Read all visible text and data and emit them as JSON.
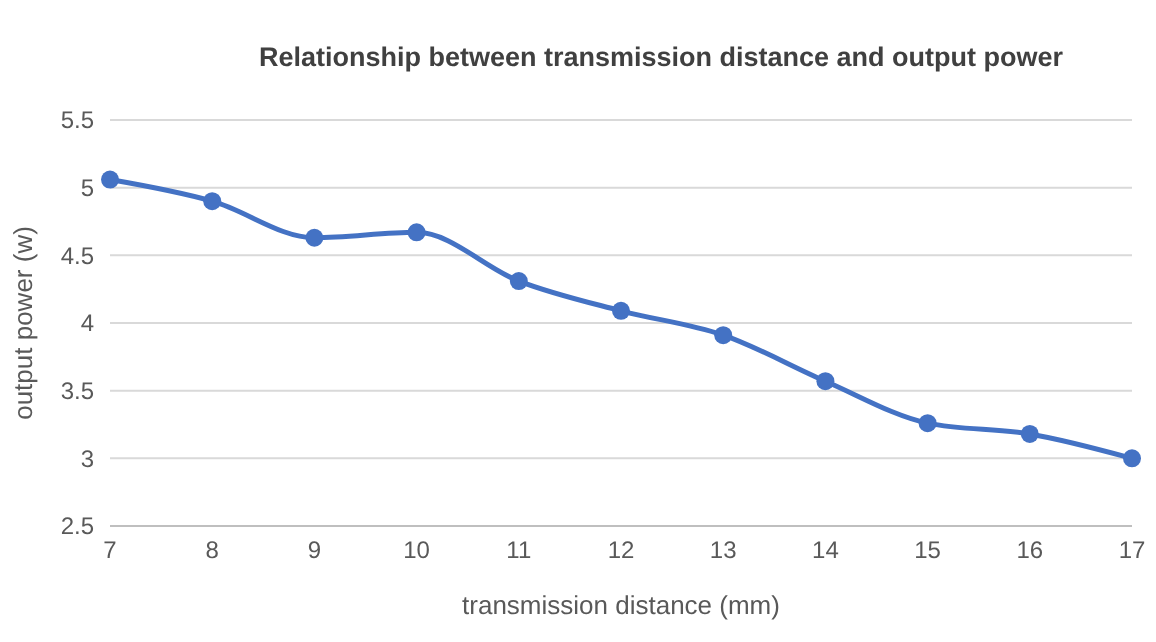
{
  "chart_data": {
    "type": "line",
    "title": "Relationship between transmission distance and output power",
    "xlabel": "transmission distance (mm)",
    "ylabel": "output power (w)",
    "x": [
      7,
      8,
      9,
      10,
      11,
      12,
      13,
      14,
      15,
      16,
      17
    ],
    "series": [
      {
        "color": "#4472c4",
        "values": [
          5.06,
          4.9,
          4.63,
          4.67,
          4.31,
          4.09,
          3.91,
          3.57,
          3.26,
          3.18,
          3.0
        ]
      }
    ],
    "xlim": [
      7,
      17
    ],
    "xticks": [
      7,
      8,
      9,
      10,
      11,
      12,
      13,
      14,
      15,
      16,
      17
    ],
    "ylim": [
      2.5,
      5.5
    ],
    "yticks": [
      2.5,
      3,
      3.5,
      4,
      4.5,
      5,
      5.5
    ],
    "grid": "y",
    "marker": "circle",
    "line_style": "solid"
  }
}
